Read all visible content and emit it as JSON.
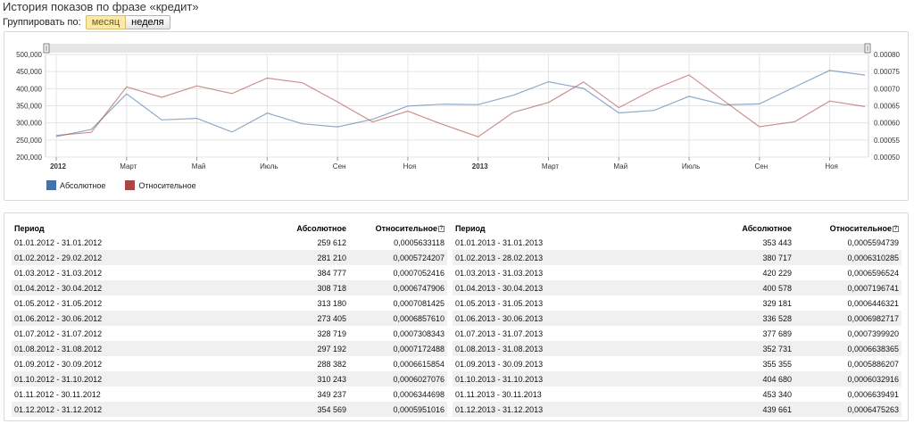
{
  "page": {
    "title": "История показов по фразе «кредит»"
  },
  "grouping": {
    "label": "Группировать по:",
    "options": [
      "месяц",
      "неделя"
    ],
    "selected": "месяц"
  },
  "chart_data": {
    "type": "line",
    "x": [
      "2012-01",
      "2012-02",
      "2012-03",
      "2012-04",
      "2012-05",
      "2012-06",
      "2012-07",
      "2012-08",
      "2012-09",
      "2012-10",
      "2012-11",
      "2012-12",
      "2013-01",
      "2013-02",
      "2013-03",
      "2013-04",
      "2013-05",
      "2013-06",
      "2013-07",
      "2013-08",
      "2013-09",
      "2013-10",
      "2013-11",
      "2013-12"
    ],
    "x_tick_labels": [
      "2012",
      "Март",
      "Май",
      "Июль",
      "Сен",
      "Ноя",
      "2013",
      "Март",
      "Май",
      "Июль",
      "Сен",
      "Ноя"
    ],
    "series": [
      {
        "name": "Абсолютное",
        "axis": "left",
        "color": "#4572a7",
        "values": [
          259612,
          281210,
          384777,
          308718,
          313180,
          273405,
          328719,
          297192,
          288382,
          310243,
          349237,
          354569,
          353443,
          380717,
          420229,
          400578,
          329181,
          336528,
          377689,
          352731,
          355355,
          404680,
          453340,
          439661
        ]
      },
      {
        "name": "Относительное",
        "axis": "right",
        "color": "#aa4643",
        "values": [
          0.0005633118,
          0.0005724207,
          0.0007052416,
          0.0006747906,
          0.0007081425,
          0.000685761,
          0.0007308343,
          0.0007172488,
          0.0006615854,
          0.0006027076,
          0.0006344698,
          0.0005951016,
          0.0005594739,
          0.0006310285,
          0.0006596524,
          0.0007196741,
          0.0006446321,
          0.0006982717,
          0.000739992,
          0.0006638365,
          0.0005886207,
          0.0006032916,
          0.0006639491,
          0.0006475263
        ]
      }
    ],
    "y_left": {
      "min": 200000,
      "max": 500000,
      "ticks": [
        "200,000",
        "250,000",
        "300,000",
        "350,000",
        "400,000",
        "450,000",
        "500,000"
      ]
    },
    "y_right": {
      "min": 0.0005,
      "max": 0.0008,
      "ticks": [
        "0.00050",
        "0.00055",
        "0.00060",
        "0.00065",
        "0.00070",
        "0.00075",
        "0.00080"
      ]
    },
    "grid": true,
    "legend": "bottom-left"
  },
  "legend": {
    "abs": "Абсолютное",
    "rel": "Относительное"
  },
  "table": {
    "headers": {
      "period": "Период",
      "abs": "Абсолютное",
      "rel": "Относительное"
    },
    "help_icon": "?",
    "rows_2012": [
      {
        "period": "01.01.2012 - 31.01.2012",
        "abs": "259 612",
        "rel": "0,0005633118"
      },
      {
        "period": "01.02.2012 - 29.02.2012",
        "abs": "281 210",
        "rel": "0,0005724207"
      },
      {
        "period": "01.03.2012 - 31.03.2012",
        "abs": "384 777",
        "rel": "0,0007052416"
      },
      {
        "period": "01.04.2012 - 30.04.2012",
        "abs": "308 718",
        "rel": "0,0006747906"
      },
      {
        "period": "01.05.2012 - 31.05.2012",
        "abs": "313 180",
        "rel": "0,0007081425"
      },
      {
        "period": "01.06.2012 - 30.06.2012",
        "abs": "273 405",
        "rel": "0,0006857610"
      },
      {
        "period": "01.07.2012 - 31.07.2012",
        "abs": "328 719",
        "rel": "0,0007308343"
      },
      {
        "period": "01.08.2012 - 31.08.2012",
        "abs": "297 192",
        "rel": "0,0007172488"
      },
      {
        "period": "01.09.2012 - 30.09.2012",
        "abs": "288 382",
        "rel": "0,0006615854"
      },
      {
        "period": "01.10.2012 - 31.10.2012",
        "abs": "310 243",
        "rel": "0,0006027076"
      },
      {
        "period": "01.11.2012 - 30.11.2012",
        "abs": "349 237",
        "rel": "0,0006344698"
      },
      {
        "period": "01.12.2012 - 31.12.2012",
        "abs": "354 569",
        "rel": "0,0005951016"
      }
    ],
    "rows_2013": [
      {
        "period": "01.01.2013 - 31.01.2013",
        "abs": "353 443",
        "rel": "0,0005594739"
      },
      {
        "period": "01.02.2013 - 28.02.2013",
        "abs": "380 717",
        "rel": "0,0006310285"
      },
      {
        "period": "01.03.2013 - 31.03.2013",
        "abs": "420 229",
        "rel": "0,0006596524"
      },
      {
        "period": "01.04.2013 - 30.04.2013",
        "abs": "400 578",
        "rel": "0,0007196741"
      },
      {
        "period": "01.05.2013 - 31.05.2013",
        "abs": "329 181",
        "rel": "0,0006446321"
      },
      {
        "period": "01.06.2013 - 30.06.2013",
        "abs": "336 528",
        "rel": "0,0006982717"
      },
      {
        "period": "01.07.2013 - 31.07.2013",
        "abs": "377 689",
        "rel": "0,0007399920"
      },
      {
        "period": "01.08.2013 - 31.08.2013",
        "abs": "352 731",
        "rel": "0,0006638365"
      },
      {
        "period": "01.09.2013 - 30.09.2013",
        "abs": "355 355",
        "rel": "0,0005886207"
      },
      {
        "period": "01.10.2013 - 31.10.2013",
        "abs": "404 680",
        "rel": "0,0006032916"
      },
      {
        "period": "01.11.2013 - 30.11.2013",
        "abs": "453 340",
        "rel": "0,0006639491"
      },
      {
        "period": "01.12.2013 - 31.12.2013",
        "abs": "439 661",
        "rel": "0,0006475263"
      }
    ]
  }
}
